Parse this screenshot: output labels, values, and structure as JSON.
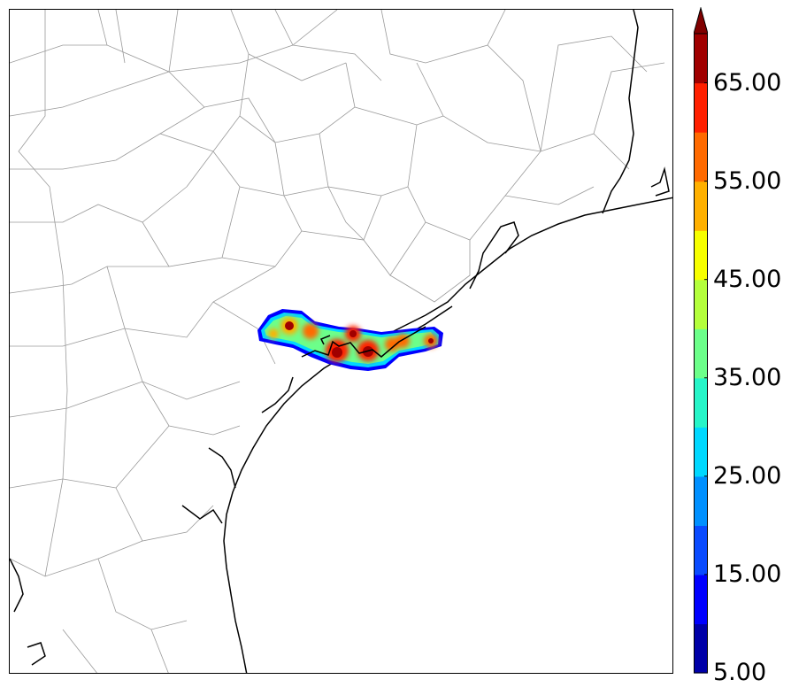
{
  "colorbar": {
    "labels": [
      "5.00",
      "15.00",
      "25.00",
      "35.00",
      "45.00",
      "55.00",
      "65.00"
    ],
    "levels": [
      5,
      10,
      15,
      20,
      25,
      30,
      35,
      40,
      45,
      50,
      55,
      60,
      65,
      70
    ],
    "colors": [
      "#0000a8",
      "#0000ff",
      "#0a4bff",
      "#0090ff",
      "#00d8ff",
      "#26f5c8",
      "#6cff8a",
      "#b4ff3c",
      "#f7ff00",
      "#ffb000",
      "#ff6a00",
      "#ff2000",
      "#a00000"
    ],
    "extend_color": "#800000"
  },
  "map": {
    "land_color": "#ffffff",
    "coast_color": "#000000",
    "border_color": "#9a9a9a"
  }
}
